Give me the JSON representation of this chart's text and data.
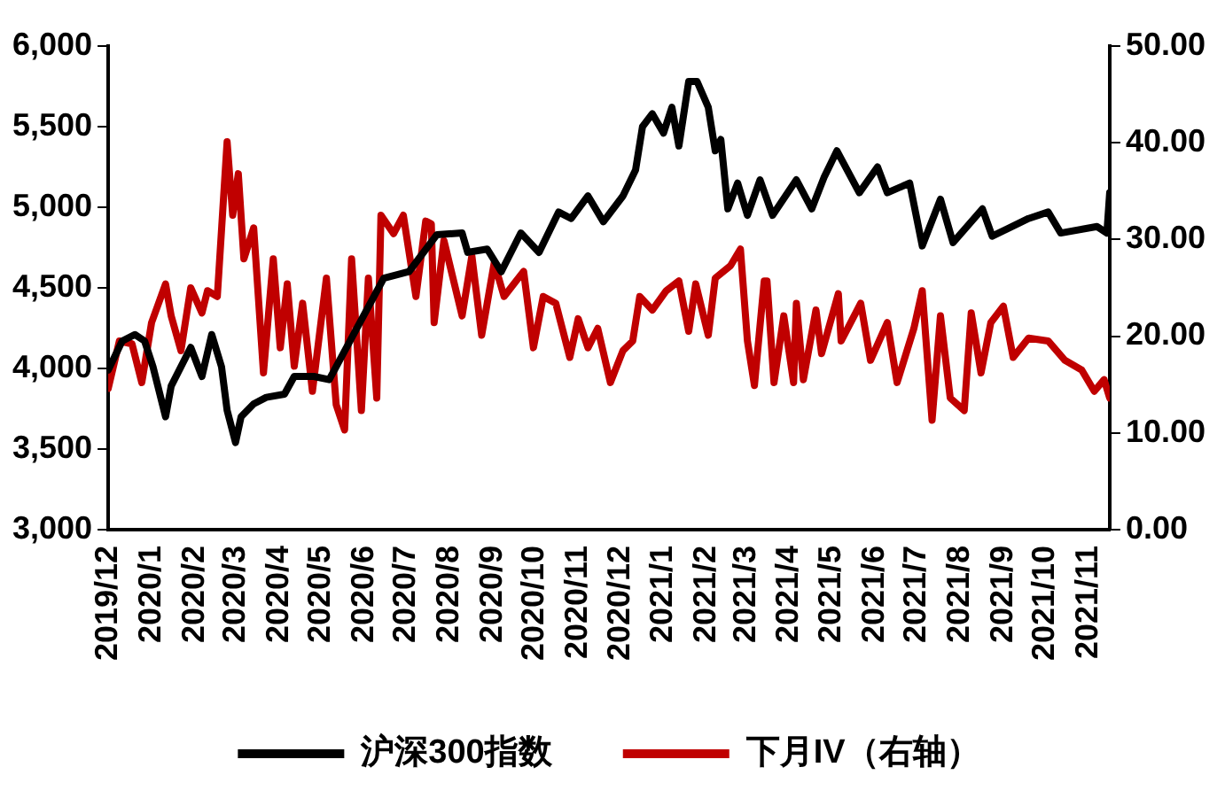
{
  "chart_data": {
    "type": "line",
    "xlim": [
      "2019-12-01",
      "2021-11-16"
    ],
    "xticks": [
      {
        "value": "2019-12-01",
        "label": "2019/12"
      },
      {
        "value": "2020-01-01",
        "label": "2020/1"
      },
      {
        "value": "2020-02-01",
        "label": "2020/2"
      },
      {
        "value": "2020-03-01",
        "label": "2020/3"
      },
      {
        "value": "2020-04-01",
        "label": "2020/4"
      },
      {
        "value": "2020-05-01",
        "label": "2020/5"
      },
      {
        "value": "2020-06-01",
        "label": "2020/6"
      },
      {
        "value": "2020-07-01",
        "label": "2020/7"
      },
      {
        "value": "2020-08-01",
        "label": "2020/8"
      },
      {
        "value": "2020-09-01",
        "label": "2020/9"
      },
      {
        "value": "2020-10-01",
        "label": "2020/10"
      },
      {
        "value": "2020-11-01",
        "label": "2020/11"
      },
      {
        "value": "2020-12-01",
        "label": "2020/12"
      },
      {
        "value": "2021-01-01",
        "label": "2021/1"
      },
      {
        "value": "2021-02-01",
        "label": "2021/2"
      },
      {
        "value": "2021-03-01",
        "label": "2021/3"
      },
      {
        "value": "2021-04-01",
        "label": "2021/4"
      },
      {
        "value": "2021-05-01",
        "label": "2021/5"
      },
      {
        "value": "2021-06-01",
        "label": "2021/6"
      },
      {
        "value": "2021-07-01",
        "label": "2021/7"
      },
      {
        "value": "2021-08-01",
        "label": "2021/8"
      },
      {
        "value": "2021-09-01",
        "label": "2021/9"
      },
      {
        "value": "2021-10-01",
        "label": "2021/10"
      },
      {
        "value": "2021-11-01",
        "label": "2021/11"
      }
    ],
    "ylim": [
      3000,
      6000
    ],
    "yticks": [
      {
        "value": 3000,
        "label": "3,000"
      },
      {
        "value": 3500,
        "label": "3,500"
      },
      {
        "value": 4000,
        "label": "4,000"
      },
      {
        "value": 4500,
        "label": "4,500"
      },
      {
        "value": 5000,
        "label": "5,000"
      },
      {
        "value": 5500,
        "label": "5,500"
      },
      {
        "value": 6000,
        "label": "6,000"
      }
    ],
    "y2lim": [
      0,
      50
    ],
    "y2ticks": [
      {
        "value": 0,
        "label": "0.00"
      },
      {
        "value": 10,
        "label": "10.00"
      },
      {
        "value": 20,
        "label": "20.00"
      },
      {
        "value": 30,
        "label": "30.00"
      },
      {
        "value": 40,
        "label": "40.00"
      },
      {
        "value": 50,
        "label": "50.00"
      }
    ],
    "legend": "bottom",
    "marker": "none",
    "series": [
      {
        "name": "沪深300指数",
        "color": "#000000",
        "x": [
          "2019-12-01",
          "2019-12-11",
          "2019-12-20",
          "2019-12-27",
          "2020-01-02",
          "2020-01-11",
          "2020-01-15",
          "2020-01-29",
          "2020-02-06",
          "2020-02-13",
          "2020-02-20",
          "2020-02-24",
          "2020-03-01",
          "2020-03-05",
          "2020-03-14",
          "2020-03-23",
          "2020-04-05",
          "2020-04-12",
          "2020-04-26",
          "2020-05-07",
          "2020-06-15",
          "2020-07-03",
          "2020-07-23",
          "2020-08-10",
          "2020-08-14",
          "2020-08-28",
          "2020-09-07",
          "2020-09-21",
          "2020-10-04",
          "2020-10-18",
          "2020-10-27",
          "2020-11-08",
          "2020-11-19",
          "2020-12-03",
          "2020-12-12",
          "2020-12-17",
          "2020-12-24",
          "2021-01-01",
          "2021-01-07",
          "2021-01-12",
          "2021-01-19",
          "2021-01-25",
          "2021-02-02",
          "2021-02-07",
          "2021-02-11",
          "2021-02-16",
          "2021-02-23",
          "2021-03-02",
          "2021-03-11",
          "2021-03-20",
          "2021-04-06",
          "2021-04-17",
          "2021-04-26",
          "2021-05-05",
          "2021-05-21",
          "2021-06-03",
          "2021-06-10",
          "2021-06-26",
          "2021-07-05",
          "2021-07-18",
          "2021-07-27",
          "2021-08-17",
          "2021-08-24",
          "2021-09-19",
          "2021-10-03",
          "2021-10-12",
          "2021-11-07",
          "2021-11-14",
          "2021-11-16"
        ],
        "values": [
          3990,
          4170,
          4210,
          4170,
          4010,
          3700,
          3890,
          4130,
          3950,
          4210,
          4010,
          3740,
          3540,
          3700,
          3780,
          3820,
          3840,
          3950,
          3950,
          3930,
          4560,
          4600,
          4830,
          4840,
          4720,
          4740,
          4600,
          4840,
          4720,
          4970,
          4930,
          5070,
          4910,
          5070,
          5230,
          5500,
          5580,
          5460,
          5620,
          5380,
          5780,
          5780,
          5620,
          5350,
          5420,
          4990,
          5150,
          4950,
          5170,
          4950,
          5170,
          4990,
          5190,
          5350,
          5090,
          5250,
          5090,
          5150,
          4760,
          5050,
          4780,
          4990,
          4820,
          4930,
          4970,
          4840,
          4880,
          4840,
          5090
        ]
      },
      {
        "name": "下月IV（右轴）",
        "color": "#c00000",
        "axis": "y2",
        "x": [
          "2019-12-01",
          "2019-12-09",
          "2019-12-18",
          "2019-12-25",
          "2020-01-01",
          "2020-01-11",
          "2020-01-15",
          "2020-01-22",
          "2020-01-29",
          "2020-02-06",
          "2020-02-10",
          "2020-02-17",
          "2020-02-24",
          "2020-02-28",
          "2020-03-03",
          "2020-03-07",
          "2020-03-14",
          "2020-03-21",
          "2020-03-28",
          "2020-04-02",
          "2020-04-07",
          "2020-04-12",
          "2020-04-18",
          "2020-04-25",
          "2020-05-05",
          "2020-05-12",
          "2020-05-18",
          "2020-05-23",
          "2020-05-30",
          "2020-06-04",
          "2020-06-10",
          "2020-06-13",
          "2020-06-22",
          "2020-06-29",
          "2020-07-08",
          "2020-07-15",
          "2020-07-19",
          "2020-07-21",
          "2020-07-28",
          "2020-08-10",
          "2020-08-17",
          "2020-08-24",
          "2020-09-02",
          "2020-09-09",
          "2020-09-23",
          "2020-09-30",
          "2020-10-07",
          "2020-10-16",
          "2020-10-26",
          "2020-11-01",
          "2020-11-08",
          "2020-11-15",
          "2020-11-24",
          "2020-12-03",
          "2020-12-10",
          "2020-12-15",
          "2020-12-24",
          "2021-01-03",
          "2021-01-12",
          "2021-01-19",
          "2021-01-24",
          "2021-02-02",
          "2021-02-07",
          "2021-02-18",
          "2021-02-25",
          "2021-03-02",
          "2021-03-07",
          "2021-03-14",
          "2021-03-16",
          "2021-03-21",
          "2021-03-28",
          "2021-04-04",
          "2021-04-06",
          "2021-04-11",
          "2021-04-20",
          "2021-04-24",
          "2021-05-06",
          "2021-05-08",
          "2021-05-22",
          "2021-05-29",
          "2021-06-10",
          "2021-06-17",
          "2021-06-29",
          "2021-07-05",
          "2021-07-12",
          "2021-07-18",
          "2021-07-25",
          "2021-08-04",
          "2021-08-09",
          "2021-08-16",
          "2021-08-23",
          "2021-09-01",
          "2021-09-08",
          "2021-09-19",
          "2021-10-03",
          "2021-10-15",
          "2021-10-27",
          "2021-11-05",
          "2021-11-12",
          "2021-11-16"
        ],
        "values": [
          14.6,
          19.5,
          19.2,
          15.2,
          21.4,
          25.4,
          22.1,
          18.5,
          25.0,
          22.4,
          24.7,
          24.1,
          40.1,
          32.5,
          36.8,
          28.0,
          31.2,
          16.2,
          28.0,
          18.8,
          25.4,
          16.9,
          23.4,
          14.3,
          26.0,
          12.9,
          10.3,
          28.0,
          12.3,
          26.0,
          13.6,
          32.5,
          30.6,
          32.5,
          24.1,
          31.9,
          31.6,
          21.4,
          29.9,
          22.1,
          28.3,
          20.1,
          27.6,
          24.1,
          26.7,
          18.8,
          24.1,
          23.4,
          17.8,
          21.8,
          18.8,
          20.8,
          15.2,
          18.5,
          19.5,
          24.1,
          22.7,
          24.7,
          25.7,
          20.5,
          25.4,
          20.1,
          26.0,
          27.3,
          29.0,
          19.5,
          14.9,
          25.7,
          25.7,
          15.2,
          22.1,
          15.2,
          23.4,
          15.5,
          22.7,
          18.2,
          24.4,
          19.5,
          23.4,
          17.5,
          21.4,
          15.2,
          20.8,
          24.7,
          11.3,
          22.1,
          13.6,
          12.3,
          22.4,
          16.2,
          21.4,
          23.1,
          17.8,
          19.8,
          19.5,
          17.5,
          16.5,
          14.3,
          15.5,
          13.6
        ]
      }
    ]
  }
}
